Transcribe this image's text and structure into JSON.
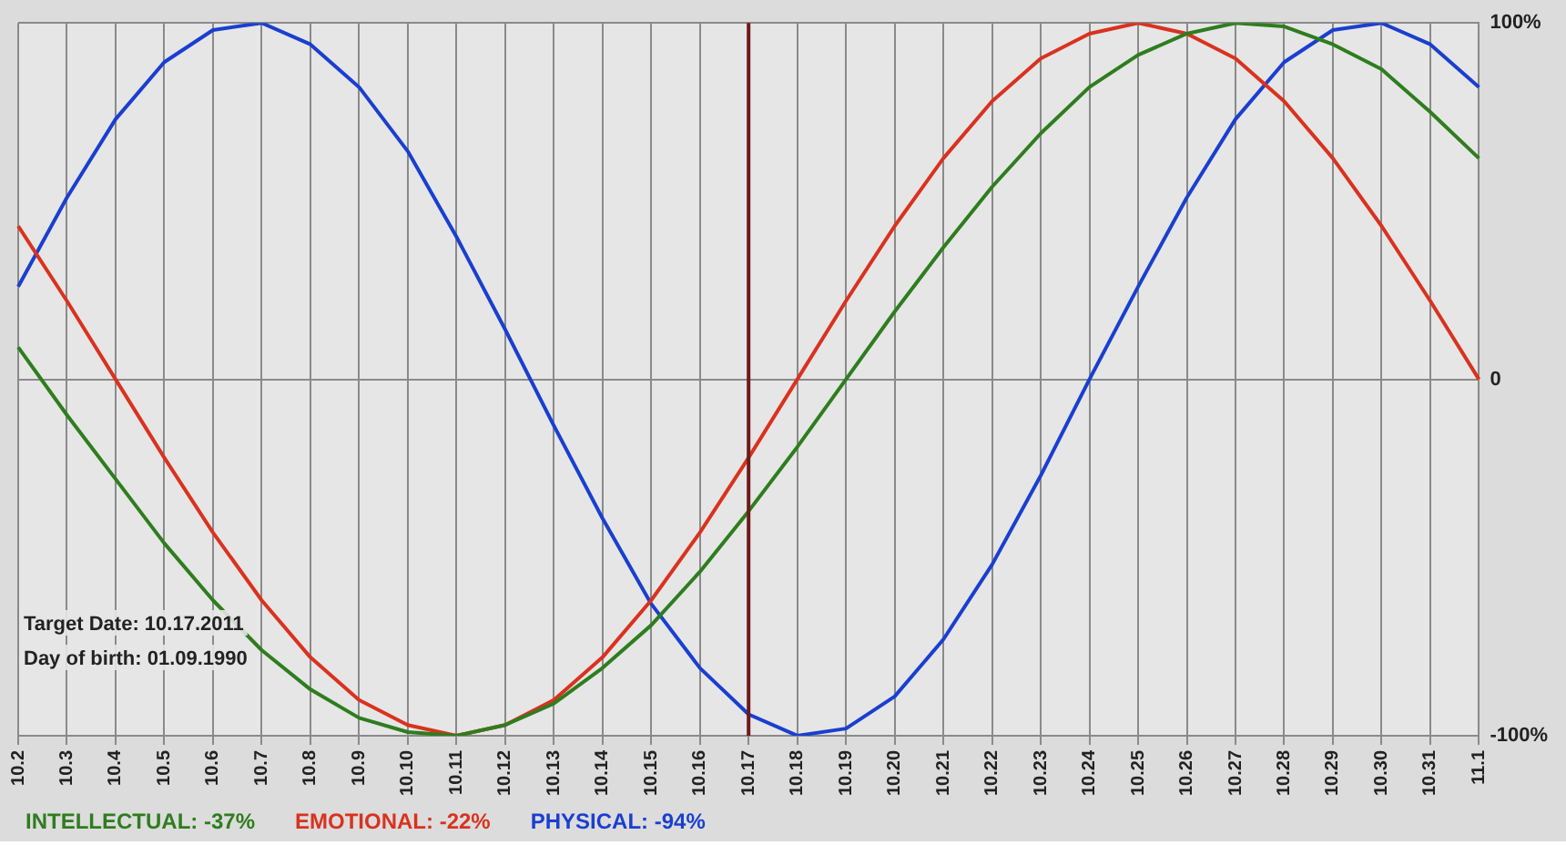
{
  "chart_data": {
    "type": "line",
    "categories": [
      "10.2",
      "10.3",
      "10.4",
      "10.5",
      "10.6",
      "10.7",
      "10.8",
      "10.9",
      "10.10",
      "10.11",
      "10.12",
      "10.13",
      "10.14",
      "10.15",
      "10.16",
      "10.17",
      "10.18",
      "10.19",
      "10.20",
      "10.21",
      "10.22",
      "10.23",
      "10.24",
      "10.25",
      "10.26",
      "10.27",
      "10.28",
      "10.29",
      "10.30",
      "10.31",
      "11.1"
    ],
    "series": [
      {
        "name": "INTELLECTUAL: -37%",
        "color": "#2e7d1e",
        "values": [
          9,
          -10,
          -28,
          -46,
          -62,
          -76,
          -87,
          -95,
          -99,
          -100,
          -97,
          -91,
          -81,
          -69,
          -54,
          -37,
          -19,
          0,
          19,
          37,
          54,
          69,
          82,
          91,
          97,
          100,
          99,
          94,
          87,
          75,
          62
        ]
      },
      {
        "name": "EMOTIONAL: -22%",
        "color": "#d9321f",
        "values": [
          43,
          22,
          0,
          -22,
          -43,
          -62,
          -78,
          -90,
          -97,
          -100,
          -97,
          -90,
          -78,
          -62,
          -43,
          -22,
          0,
          22,
          43,
          62,
          78,
          90,
          97,
          100,
          97,
          90,
          78,
          62,
          43,
          22,
          0
        ]
      },
      {
        "name": "PHYSICAL: -94%",
        "color": "#1a3fcf",
        "values": [
          26,
          51,
          73,
          89,
          98,
          100,
          94,
          82,
          64,
          40,
          14,
          -13,
          -39,
          -63,
          -81,
          -94,
          -100,
          -98,
          -89,
          -73,
          -52,
          -27,
          0,
          26,
          51,
          73,
          89,
          98,
          100,
          94,
          82
        ]
      }
    ],
    "ylim": [
      -100,
      100
    ],
    "yticks": [
      {
        "value": -100,
        "label": "-100%"
      },
      0,
      {
        "value": 100,
        "label": "100%"
      }
    ],
    "grid": true,
    "legend": "bottom",
    "marker": "none",
    "line_style": "solid",
    "ref_lines": [
      {
        "axis": "x",
        "value": "10.17",
        "color": "#6e1a1a"
      }
    ],
    "annotations": [
      "Target Date: 10.17.2011",
      "Day of birth: 01.09.1990"
    ]
  }
}
